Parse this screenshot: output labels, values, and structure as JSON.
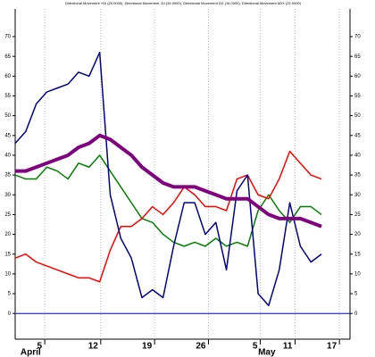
{
  "chart_data": {
    "type": "line",
    "title": "Directional Movement +DI (25.0000), Directional Movement -DI (34.0000), Directional Movement DX (15.0000), Directional Movement ADX (22.0000)",
    "x": [
      0,
      1,
      2,
      3,
      4,
      5,
      6,
      7,
      8,
      9,
      10,
      11,
      12,
      13,
      14,
      15,
      16,
      17,
      18,
      19,
      20,
      21,
      22,
      23,
      24,
      25,
      26,
      27,
      28,
      29
    ],
    "series": [
      {
        "name": "+DI",
        "color": "#008000",
        "width": 1.5,
        "values": [
          35,
          34,
          34,
          37,
          36,
          34,
          38,
          37,
          40,
          36,
          32,
          28,
          24,
          23,
          20,
          18,
          17,
          18,
          17,
          19,
          17,
          18,
          17,
          26,
          30,
          26,
          23,
          27,
          27,
          25
        ]
      },
      {
        "name": "-DI",
        "color": "#ff0000",
        "width": 1.5,
        "values": [
          14,
          15,
          13,
          12,
          11,
          10,
          9,
          9,
          8,
          16,
          22,
          22,
          24,
          27,
          25,
          28,
          32,
          30,
          27,
          27,
          26,
          34,
          35,
          30,
          29,
          34,
          41,
          38,
          35,
          34
        ]
      },
      {
        "name": "DX",
        "color": "#00008b",
        "width": 1.5,
        "values": [
          43,
          46,
          53,
          56,
          57,
          58,
          61,
          60,
          66,
          30,
          19,
          14,
          4,
          6,
          4,
          17,
          28,
          28,
          20,
          23,
          11,
          31,
          35,
          5,
          2,
          11,
          28,
          17,
          13,
          15
        ]
      },
      {
        "name": "ADX",
        "color": "#800080",
        "width": 4,
        "values": [
          36,
          36,
          37,
          38,
          39,
          40,
          42,
          43,
          45,
          44,
          42,
          40,
          37,
          35,
          33,
          32,
          32,
          32,
          31,
          30,
          29,
          29,
          29,
          27,
          25,
          24,
          24,
          24,
          23,
          22
        ]
      }
    ],
    "xlim": [
      0,
      31.7
    ],
    "xticks": [
      {
        "value": 2.8,
        "label": "5"
      },
      {
        "value": 8.1,
        "label": "12"
      },
      {
        "value": 13.2,
        "label": "19"
      },
      {
        "value": 18.3,
        "label": "26"
      },
      {
        "value": 23.2,
        "label": "5"
      },
      {
        "value": 26.5,
        "label": "11"
      },
      {
        "value": 30.7,
        "label": "17"
      }
    ],
    "months": [
      {
        "value": 0.5,
        "label": "April"
      },
      {
        "value": 23,
        "label": "May"
      }
    ],
    "ylim": [
      -6.5,
      77
    ],
    "yticks": [
      0,
      5,
      10,
      15,
      20,
      25,
      30,
      35,
      40,
      45,
      50,
      55,
      60,
      65,
      70
    ],
    "zero_line_color": "#0000cc",
    "grid": true
  }
}
